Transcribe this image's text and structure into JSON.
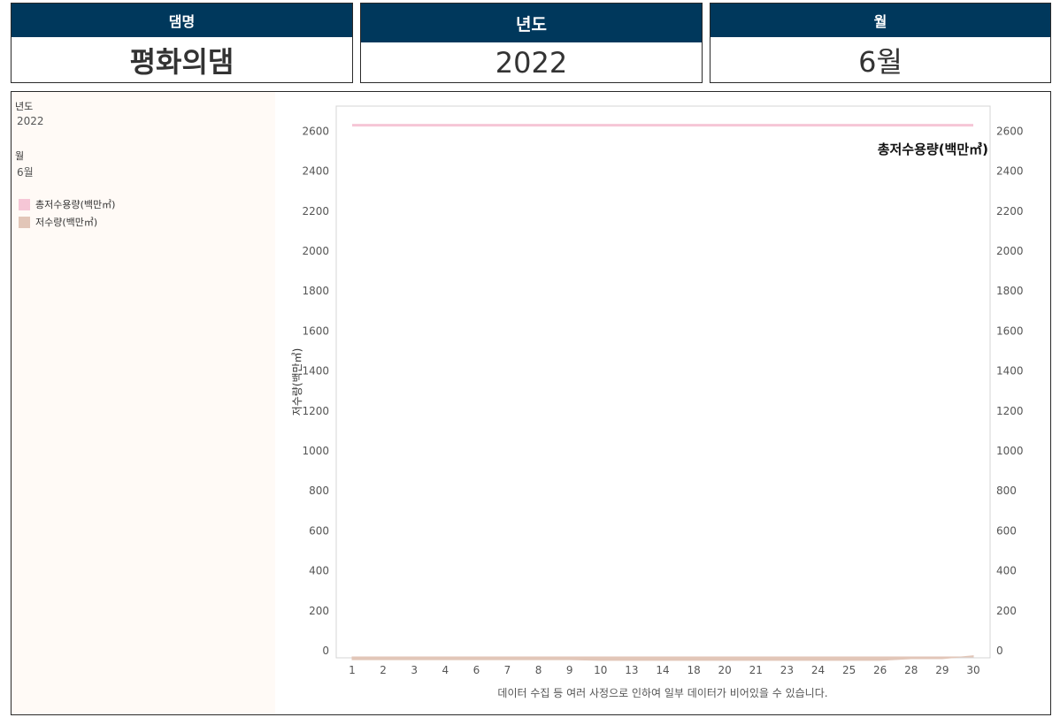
{
  "cards": {
    "dam": {
      "label": "댐명",
      "value": "평화의댐"
    },
    "year": {
      "label": "년도",
      "value": "2022"
    },
    "month": {
      "label": "월",
      "value": "6월"
    }
  },
  "filters": {
    "year_label": "년도",
    "year_value": "2022",
    "month_label": "월",
    "month_value": "6월"
  },
  "legend": [
    {
      "label": "총저수용량(백만㎥)",
      "color": "#f6c6d6"
    },
    {
      "label": "저수량(백만㎥)",
      "color": "#e2c6b8"
    }
  ],
  "footnote": "데이터 수집 등 여러 사정으로 인하여 일부 데이터가 비어있을 수 있습니다.",
  "chart_data": {
    "type": "area",
    "x": [
      "1",
      "2",
      "3",
      "4",
      "6",
      "7",
      "8",
      "9",
      "10",
      "13",
      "14",
      "18",
      "20",
      "21",
      "23",
      "24",
      "25",
      "26",
      "28",
      "29",
      "30"
    ],
    "series": [
      {
        "name": "총저수용량(백만㎥)",
        "type": "line",
        "color": "#f6c6d6",
        "values": [
          2630,
          2630,
          2630,
          2630,
          2630,
          2630,
          2630,
          2630,
          2630,
          2630,
          2630,
          2630,
          2630,
          2630,
          2630,
          2630,
          2630,
          2630,
          2630,
          2630,
          2630
        ]
      },
      {
        "name": "저수량(백만㎥)",
        "type": "area",
        "color": "#e2c6b8",
        "values": [
          -45,
          -45,
          -45,
          -45,
          -45,
          -45,
          -45,
          -45,
          -48,
          -48,
          -48,
          -48,
          -48,
          -48,
          -48,
          -48,
          -48,
          -48,
          -40,
          -40,
          -25
        ]
      }
    ],
    "ylabel": "저수량(백만㎥)",
    "ylim": [
      -50,
      2800
    ],
    "yticks": [
      0,
      200,
      400,
      600,
      800,
      1000,
      1200,
      1400,
      1600,
      1800,
      2000,
      2200,
      2400,
      2600
    ],
    "line_label": "총저수용량(백만㎥)"
  }
}
